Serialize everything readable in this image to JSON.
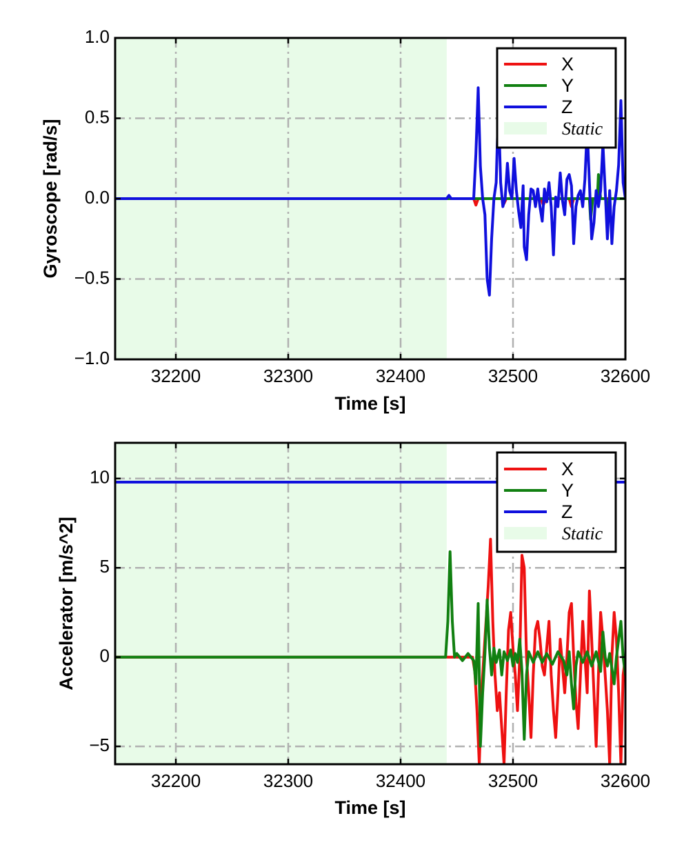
{
  "colors": {
    "X": "#ee1111",
    "Y": "#118011",
    "Z": "#1010dd",
    "static_fill": "#e8fbe8",
    "grid": "#b0b0b0"
  },
  "chart_data": [
    {
      "type": "line",
      "xlabel": "Time [s]",
      "ylabel": "Gyroscope [rad/s]",
      "xlim": [
        32146,
        32600
      ],
      "ylim": [
        -1.0,
        1.0
      ],
      "xticks": [
        32200,
        32300,
        32400,
        32500,
        32600
      ],
      "xtick_labels": [
        "32200",
        "32300",
        "32400",
        "32500",
        "32600"
      ],
      "yticks": [
        1.0,
        0.5,
        0.0,
        -0.5,
        -1.0
      ],
      "ytick_labels": [
        "1.0",
        "0.5",
        "0.0",
        "−0.5",
        "−1.0"
      ],
      "grid": true,
      "legend_position": "top-right",
      "legend": [
        "X",
        "Y",
        "Z",
        "Static"
      ],
      "static_region": [
        32146,
        32441
      ],
      "series": [
        {
          "name": "X",
          "color": "X",
          "points": [
            [
              32146,
              0
            ],
            [
              32465,
              0
            ],
            [
              32467,
              -0.04
            ],
            [
              32469,
              0
            ],
            [
              32490,
              0
            ],
            [
              32492,
              -0.03
            ],
            [
              32494,
              0
            ],
            [
              32525,
              0
            ],
            [
              32527,
              -0.04
            ],
            [
              32529,
              0
            ],
            [
              32550,
              0
            ],
            [
              32552,
              -0.05
            ],
            [
              32554,
              0
            ],
            [
              32600,
              0
            ]
          ]
        },
        {
          "name": "Y",
          "color": "Y",
          "points": [
            [
              32146,
              0
            ],
            [
              32568,
              0
            ],
            [
              32569,
              -0.13
            ],
            [
              32571,
              0
            ],
            [
              32575,
              0
            ],
            [
              32576,
              0.15
            ],
            [
              32578,
              0
            ],
            [
              32583,
              0
            ],
            [
              32584,
              -0.16
            ],
            [
              32586,
              0
            ],
            [
              32600,
              0
            ]
          ]
        },
        {
          "name": "Z",
          "color": "Z",
          "points": [
            [
              32146,
              0
            ],
            [
              32441,
              0
            ],
            [
              32443,
              0.02
            ],
            [
              32445,
              0
            ],
            [
              32465,
              0
            ],
            [
              32467,
              0.28
            ],
            [
              32469,
              0.69
            ],
            [
              32471,
              0.2
            ],
            [
              32473,
              0
            ],
            [
              32475,
              -0.1
            ],
            [
              32477,
              -0.5
            ],
            [
              32479,
              -0.6
            ],
            [
              32481,
              -0.25
            ],
            [
              32483,
              0
            ],
            [
              32485,
              0.1
            ],
            [
              32487,
              0.58
            ],
            [
              32489,
              0.1
            ],
            [
              32491,
              -0.05
            ],
            [
              32493,
              0
            ],
            [
              32495,
              0.22
            ],
            [
              32497,
              0.05
            ],
            [
              32499,
              0
            ],
            [
              32501,
              0.25
            ],
            [
              32503,
              0.05
            ],
            [
              32505,
              -0.08
            ],
            [
              32507,
              -0.18
            ],
            [
              32509,
              0.08
            ],
            [
              32510,
              -0.3
            ],
            [
              32512,
              -0.38
            ],
            [
              32514,
              -0.1
            ],
            [
              32516,
              0.06
            ],
            [
              32518,
              0.05
            ],
            [
              32520,
              -0.05
            ],
            [
              32522,
              0.06
            ],
            [
              32524,
              -0.05
            ],
            [
              32526,
              -0.14
            ],
            [
              32528,
              0.06
            ],
            [
              32530,
              -0.02
            ],
            [
              32532,
              0.1
            ],
            [
              32534,
              -0.05
            ],
            [
              32536,
              -0.35
            ],
            [
              32538,
              0.01
            ],
            [
              32540,
              -0.05
            ],
            [
              32542,
              0.16
            ],
            [
              32544,
              -0.01
            ],
            [
              32546,
              -0.1
            ],
            [
              32548,
              0.12
            ],
            [
              32550,
              0.15
            ],
            [
              32552,
              0.08
            ],
            [
              32554,
              -0.28
            ],
            [
              32556,
              -0.05
            ],
            [
              32558,
              0.02
            ],
            [
              32560,
              0.05
            ],
            [
              32562,
              -0.05
            ],
            [
              32564,
              0.12
            ],
            [
              32566,
              0.44
            ],
            [
              32568,
              0.1
            ],
            [
              32570,
              -0.25
            ],
            [
              32572,
              -0.15
            ],
            [
              32574,
              0.05
            ],
            [
              32576,
              -0.05
            ],
            [
              32578,
              0.05
            ],
            [
              32580,
              0.34
            ],
            [
              32582,
              0.05
            ],
            [
              32584,
              -0.25
            ],
            [
              32586,
              0.05
            ],
            [
              32588,
              -0.28
            ],
            [
              32590,
              -0.05
            ],
            [
              32592,
              0.05
            ],
            [
              32594,
              0.21
            ],
            [
              32596,
              0.61
            ],
            [
              32598,
              0.1
            ],
            [
              32600,
              0
            ]
          ]
        }
      ]
    },
    {
      "type": "line",
      "xlabel": "Time [s]",
      "ylabel": "Accelerator [m/s^2]",
      "xlim": [
        32146,
        32600
      ],
      "ylim": [
        -6.0,
        12.0
      ],
      "xticks": [
        32200,
        32300,
        32400,
        32500,
        32600
      ],
      "xtick_labels": [
        "32200",
        "32300",
        "32400",
        "32500",
        "32600"
      ],
      "yticks": [
        10,
        5,
        0,
        -5
      ],
      "ytick_labels": [
        "10",
        "5",
        "0",
        "−5"
      ],
      "grid": true,
      "legend_position": "top-right",
      "legend": [
        "X",
        "Y",
        "Z",
        "Static"
      ],
      "static_region": [
        32146,
        32441
      ],
      "series": [
        {
          "name": "Z",
          "color": "Z",
          "points": [
            [
              32146,
              9.8
            ],
            [
              32600,
              9.8
            ]
          ]
        },
        {
          "name": "X",
          "color": "X",
          "points": [
            [
              32146,
              0
            ],
            [
              32464,
              0
            ],
            [
              32466,
              -0.8
            ],
            [
              32468,
              -3
            ],
            [
              32470,
              -6
            ],
            [
              32472,
              -2
            ],
            [
              32474,
              0
            ],
            [
              32476,
              2
            ],
            [
              32478,
              4
            ],
            [
              32480,
              6.6
            ],
            [
              32482,
              2
            ],
            [
              32484,
              -1
            ],
            [
              32486,
              -3
            ],
            [
              32488,
              -2
            ],
            [
              32490,
              -4
            ],
            [
              32492,
              -6
            ],
            [
              32494,
              -2
            ],
            [
              32496,
              1.5
            ],
            [
              32498,
              2.5
            ],
            [
              32500,
              0.5
            ],
            [
              32502,
              -1
            ],
            [
              32504,
              -3
            ],
            [
              32506,
              0
            ],
            [
              32508,
              5.7
            ],
            [
              32510,
              5
            ],
            [
              32512,
              0
            ],
            [
              32514,
              -2
            ],
            [
              32516,
              -4.5
            ],
            [
              32518,
              -1
            ],
            [
              32520,
              1.5
            ],
            [
              32522,
              2
            ],
            [
              32524,
              1
            ],
            [
              32526,
              -0.5
            ],
            [
              32528,
              -1
            ],
            [
              32530,
              0.5
            ],
            [
              32532,
              2
            ],
            [
              32534,
              -1
            ],
            [
              32536,
              -3
            ],
            [
              32538,
              -4.5
            ],
            [
              32540,
              -2
            ],
            [
              32542,
              1
            ],
            [
              32544,
              -0.5
            ],
            [
              32546,
              -2
            ],
            [
              32548,
              0
            ],
            [
              32550,
              2.5
            ],
            [
              32552,
              3
            ],
            [
              32554,
              0
            ],
            [
              32556,
              -2.5
            ],
            [
              32558,
              -4
            ],
            [
              32560,
              -1
            ],
            [
              32562,
              2
            ],
            [
              32564,
              0
            ],
            [
              32566,
              -2
            ],
            [
              32568,
              3.7
            ],
            [
              32570,
              1
            ],
            [
              32572,
              -2
            ],
            [
              32574,
              -5
            ],
            [
              32576,
              -1
            ],
            [
              32578,
              2.5
            ],
            [
              32580,
              1
            ],
            [
              32582,
              -1
            ],
            [
              32584,
              -3
            ],
            [
              32586,
              -6
            ],
            [
              32588,
              0
            ],
            [
              32590,
              2.5
            ],
            [
              32592,
              1
            ],
            [
              32594,
              -2
            ],
            [
              32596,
              -6
            ],
            [
              32598,
              -1
            ],
            [
              32600,
              0
            ]
          ]
        },
        {
          "name": "Y",
          "color": "Y",
          "points": [
            [
              32146,
              0
            ],
            [
              32440,
              0
            ],
            [
              32442,
              2
            ],
            [
              32444,
              5.9
            ],
            [
              32446,
              2
            ],
            [
              32448,
              0
            ],
            [
              32450,
              0.2
            ],
            [
              32455,
              -0.2
            ],
            [
              32460,
              0.2
            ],
            [
              32465,
              -0.2
            ],
            [
              32467,
              -1.5
            ],
            [
              32469,
              3
            ],
            [
              32471,
              -5
            ],
            [
              32473,
              -2
            ],
            [
              32475,
              0.2
            ],
            [
              32477,
              3.2
            ],
            [
              32479,
              0.5
            ],
            [
              32481,
              -1
            ],
            [
              32483,
              0.5
            ],
            [
              32485,
              -0.3
            ],
            [
              32488,
              0.4
            ],
            [
              32490,
              -1
            ],
            [
              32492,
              0.3
            ],
            [
              32495,
              -0.2
            ],
            [
              32498,
              0.4
            ],
            [
              32500,
              -0.5
            ],
            [
              32502,
              0.2
            ],
            [
              32504,
              -0.3
            ],
            [
              32506,
              1
            ],
            [
              32508,
              -0.8
            ],
            [
              32510,
              -4.6
            ],
            [
              32512,
              -1
            ],
            [
              32514,
              0.3
            ],
            [
              32518,
              -0.3
            ],
            [
              32522,
              0.3
            ],
            [
              32526,
              -0.3
            ],
            [
              32530,
              0.2
            ],
            [
              32535,
              -0.4
            ],
            [
              32540,
              0.3
            ],
            [
              32545,
              -0.2
            ],
            [
              32548,
              -1
            ],
            [
              32550,
              0.3
            ],
            [
              32552,
              -1.5
            ],
            [
              32554,
              -2.9
            ],
            [
              32556,
              -0.5
            ],
            [
              32558,
              0.3
            ],
            [
              32562,
              -0.3
            ],
            [
              32566,
              0.3
            ],
            [
              32570,
              -0.5
            ],
            [
              32574,
              0.3
            ],
            [
              32578,
              -0.8
            ],
            [
              32580,
              1.4
            ],
            [
              32582,
              0
            ],
            [
              32584,
              -0.5
            ],
            [
              32586,
              0.2
            ],
            [
              32590,
              -1.5
            ],
            [
              32592,
              0
            ],
            [
              32596,
              2
            ],
            [
              32598,
              0
            ],
            [
              32600,
              -1
            ]
          ]
        }
      ]
    }
  ]
}
